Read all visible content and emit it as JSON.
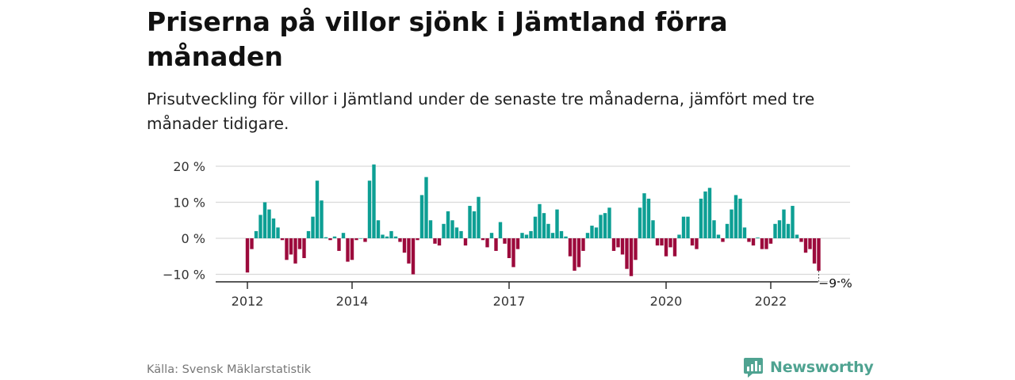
{
  "title": "Priserna på villor sjönk i Jämtland förra månaden",
  "subtitle": "Prisutveckling för villor i Jämtland under de senaste tre månaderna, jämfört med tre månader tidigare.",
  "source": "Källa: Svensk Mäklarstatistik",
  "brand": {
    "name": "Newsworthy",
    "color": "#4fa391"
  },
  "colors": {
    "positive": "#0d9f94",
    "negative": "#9c0a3c",
    "grid": "#d9d9d9",
    "axis": "#222222"
  },
  "chart_data": {
    "type": "bar",
    "ylim": [
      -12,
      21
    ],
    "yticks": [
      {
        "value": 20,
        "label": "20 %"
      },
      {
        "value": 10,
        "label": "10 %"
      },
      {
        "value": 0,
        "label": "0 %"
      },
      {
        "value": -10,
        "label": "−10 %"
      }
    ],
    "xticks": [
      {
        "index": 0,
        "label": "2012"
      },
      {
        "index": 24,
        "label": "2014"
      },
      {
        "index": 60,
        "label": "2017"
      },
      {
        "index": 96,
        "label": "2020"
      },
      {
        "index": 120,
        "label": "2022"
      }
    ],
    "annotation": {
      "index": 131,
      "label": "−9 %"
    },
    "categories_start": "2012-01",
    "values": [
      -9.5,
      -3,
      2,
      6.5,
      10,
      8,
      5.5,
      3,
      -0.5,
      -6,
      -4.5,
      -7,
      -3,
      -5.5,
      2,
      6,
      16,
      10.5,
      0.3,
      -0.5,
      0.5,
      -3.5,
      1.5,
      -6.5,
      -6,
      -0.5,
      0,
      -1,
      16,
      20.5,
      5,
      1,
      0.5,
      2,
      0.5,
      -1,
      -4,
      -7,
      -10,
      -0.5,
      12,
      17,
      5,
      -1.5,
      -2,
      4,
      7.5,
      5,
      3,
      2,
      -2,
      9,
      7.5,
      11.5,
      -0.5,
      -2.5,
      1.5,
      -3.5,
      4.5,
      -1.5,
      -5.5,
      -8,
      -3,
      1.5,
      1,
      2,
      6,
      9.5,
      7,
      4,
      1.5,
      8,
      2,
      0.5,
      -5,
      -9,
      -8,
      -3.5,
      1.5,
      3.5,
      3,
      6.5,
      7,
      8.5,
      -3.5,
      -2.5,
      -4.5,
      -8.5,
      -10.5,
      -6,
      8.5,
      12.5,
      11,
      5,
      -2,
      -2,
      -5,
      -2.5,
      -5,
      1,
      6,
      6,
      -2,
      -3,
      11,
      13,
      14,
      5,
      1,
      -1,
      4,
      8,
      12,
      11,
      3,
      -1,
      -2,
      0.2,
      -3,
      -3,
      -1.5,
      4,
      5,
      8,
      4,
      9,
      1,
      -1,
      -4,
      -3,
      -7,
      -9
    ]
  }
}
